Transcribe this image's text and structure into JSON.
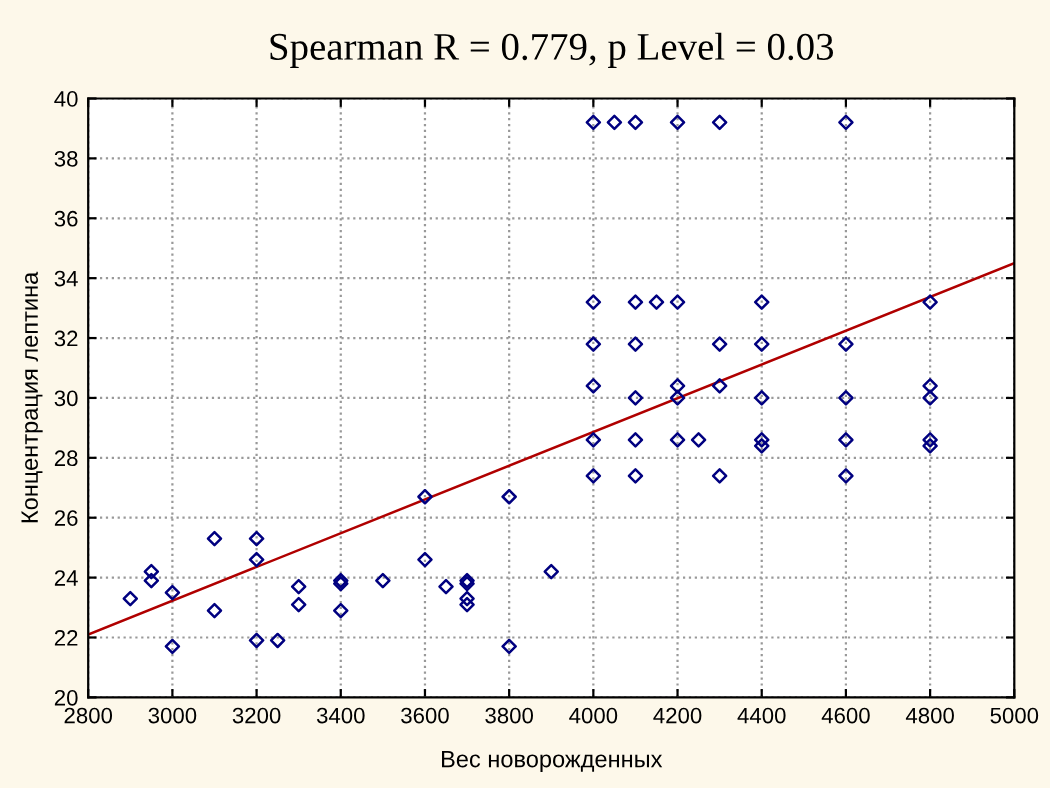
{
  "chart_data": {
    "type": "scatter",
    "title": "Spearman R = 0.779, p Level = 0.03",
    "xlabel": "Вес новорожденных",
    "ylabel": "Концентрация лептина",
    "xlim": [
      2800,
      5000
    ],
    "xticks": [
      2800,
      3000,
      3200,
      3400,
      3600,
      3800,
      4000,
      4200,
      4400,
      4600,
      4800,
      5000
    ],
    "ylim": [
      20,
      40
    ],
    "yticks": [
      20,
      22,
      24,
      26,
      28,
      30,
      32,
      34,
      36,
      38,
      40
    ],
    "grid": true,
    "marker": "diamond",
    "series": [
      {
        "color": "#000080",
        "x": [
          2900,
          2950,
          2950,
          3000,
          3000,
          3100,
          3100,
          3200,
          3200,
          3200,
          3250,
          3300,
          3300,
          3400,
          3400,
          3400,
          3500,
          3600,
          3600,
          3650,
          3700,
          3700,
          3700,
          3700,
          3800,
          3800,
          3900,
          4000,
          4000,
          4000,
          4000,
          4000,
          4000,
          4050,
          4100,
          4100,
          4100,
          4100,
          4100,
          4100,
          4150,
          4200,
          4200,
          4200,
          4200,
          4200,
          4250,
          4300,
          4300,
          4300,
          4300,
          4400,
          4400,
          4400,
          4400,
          4400,
          4600,
          4600,
          4600,
          4600,
          4600,
          4800,
          4800,
          4800,
          4800,
          4800
        ],
        "values": [
          23.3,
          24.2,
          23.9,
          23.5,
          21.7,
          25.3,
          22.9,
          25.3,
          24.6,
          21.9,
          21.9,
          23.7,
          23.1,
          23.9,
          23.8,
          22.9,
          23.9,
          26.7,
          24.6,
          23.7,
          23.9,
          23.8,
          23.3,
          23.1,
          26.7,
          21.7,
          24.2,
          39.2,
          33.2,
          31.8,
          30.4,
          28.6,
          27.4,
          39.2,
          39.2,
          33.2,
          31.8,
          30.0,
          28.6,
          27.4,
          33.2,
          39.2,
          33.2,
          30.4,
          30.0,
          28.6,
          28.6,
          39.2,
          31.8,
          30.4,
          27.4,
          33.2,
          31.8,
          30.0,
          28.6,
          28.4,
          39.2,
          31.8,
          30.0,
          28.6,
          27.4,
          33.2,
          30.4,
          30.0,
          28.6,
          28.4
        ]
      },
      {
        "type": "line",
        "color": "#b00000",
        "marker": "none",
        "line_style": "solid",
        "x": [
          2800,
          5000
        ],
        "values": [
          22.1,
          34.5
        ]
      }
    ]
  }
}
